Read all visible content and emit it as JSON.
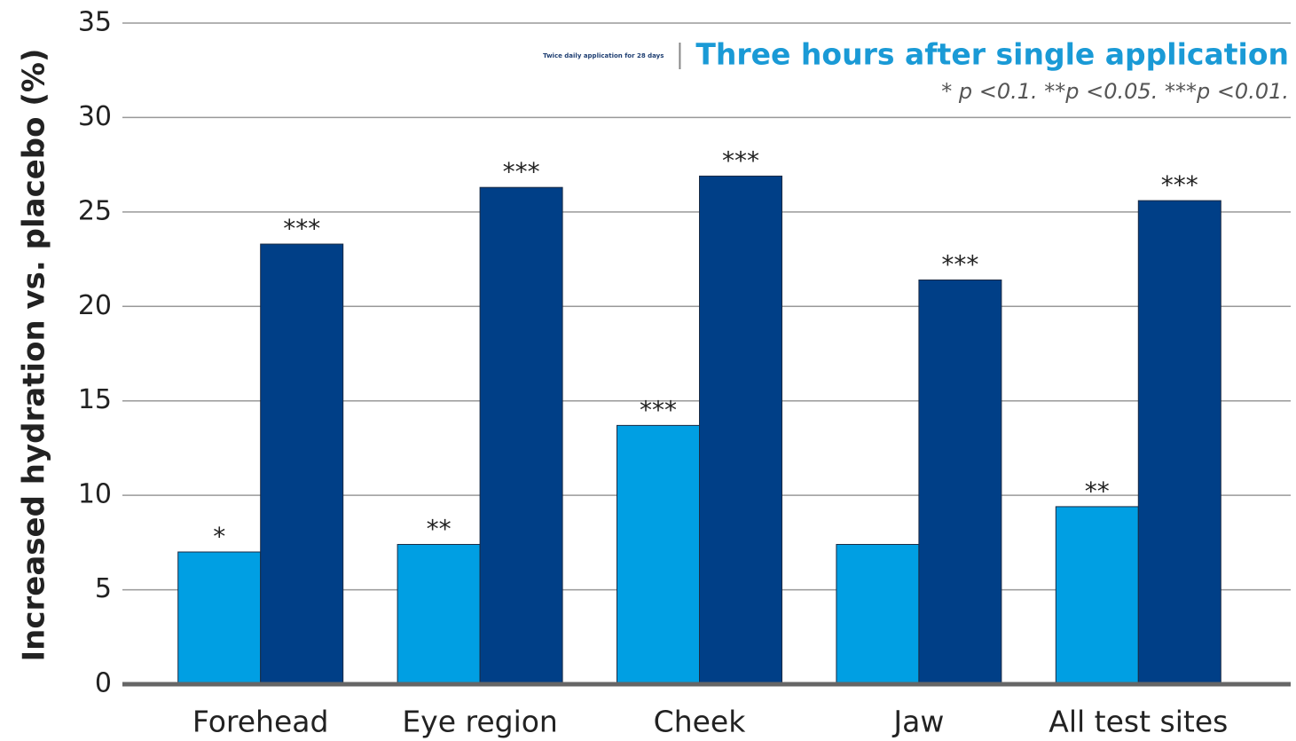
{
  "chart_data": {
    "type": "bar",
    "y_label": "Increased hydration vs. placebo (%)",
    "note": "* p <0.1. **p <0.05. ***p <0.01.",
    "categories": [
      "Forehead",
      "Eye region",
      "Cheek",
      "Jaw",
      "All test sites"
    ],
    "series": [
      {
        "name": "Three hours after single application",
        "color": "#009fe3",
        "values": [
          7.0,
          7.4,
          13.7,
          7.4,
          9.4
        ],
        "value_labels": [
          "*",
          "**",
          "***",
          null,
          "**"
        ]
      },
      {
        "name": "Twice daily application for 28 days",
        "color": "#003f87",
        "values": [
          23.3,
          26.3,
          26.9,
          21.4,
          25.6
        ],
        "value_labels": [
          "***",
          "***",
          "***",
          "***",
          "***"
        ]
      }
    ],
    "ylim": [
      0,
      35
    ],
    "yticks": [
      0,
      5,
      10,
      15,
      20,
      25,
      30,
      35
    ],
    "grid": true
  }
}
